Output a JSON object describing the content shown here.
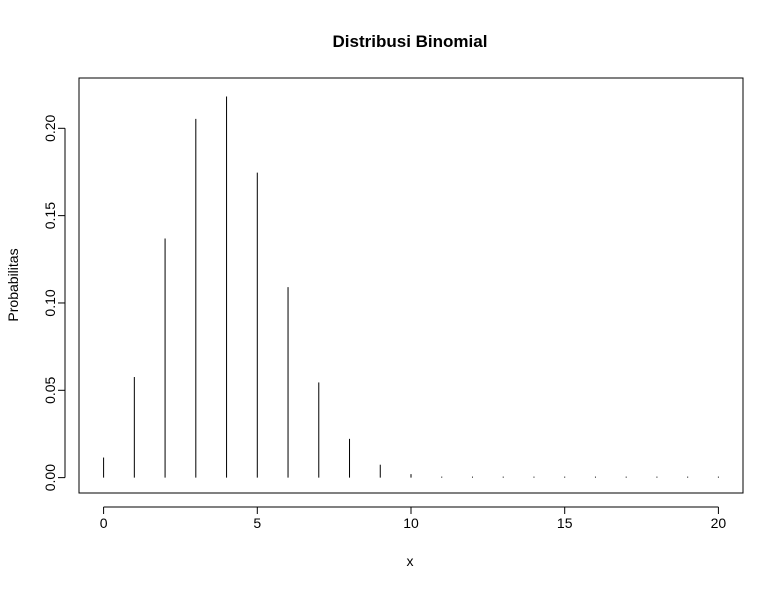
{
  "chart_data": {
    "type": "bar",
    "title": "Distribusi Binomial",
    "xlabel": "x",
    "ylabel": "Probabilitas",
    "xlim": [
      -0.8,
      20.8
    ],
    "ylim": [
      -0.0088,
      0.2288
    ],
    "x_ticks": [
      "0",
      "5",
      "10",
      "15",
      "20"
    ],
    "y_ticks": [
      "0.00",
      "0.05",
      "0.10",
      "0.15",
      "0.20"
    ],
    "grid": false,
    "x": [
      0,
      1,
      2,
      3,
      4,
      5,
      6,
      7,
      8,
      9,
      10,
      11,
      12,
      13,
      14,
      15,
      16,
      17,
      18,
      19,
      20
    ],
    "values": [
      0.0115,
      0.0576,
      0.1369,
      0.2054,
      0.2182,
      0.1746,
      0.1091,
      0.0545,
      0.0222,
      0.0074,
      0.002,
      0.0005,
      0.0001,
      0.0,
      0.0,
      0.0,
      0.0,
      0.0,
      0.0,
      0.0,
      0.0
    ],
    "colors": {
      "bar": "#000000",
      "axis": "#000000"
    }
  }
}
